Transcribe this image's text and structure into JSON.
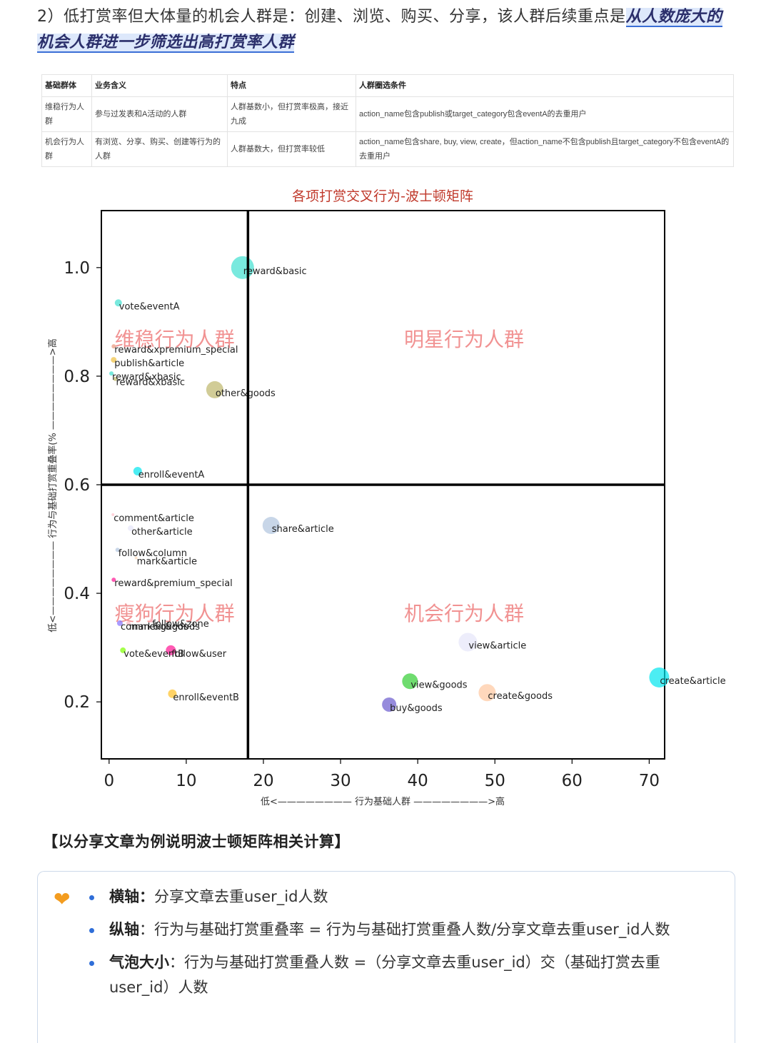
{
  "intro": {
    "text": "2）低打赏率但大体量的机会人群是：创建、浏览、购买、分享，该人群后续重点是",
    "highlight": "从人数庞大的机会人群进一步筛选出高打赏率人群"
  },
  "table": {
    "headers": [
      "基础群体",
      "业务含义",
      "特点",
      "人群圈选条件"
    ],
    "rows": [
      [
        "维稳行为人群",
        "参与过发表和A活动的人群",
        "人群基数小，但打赏率极高，接近九成",
        "action_name包含publish或target_category包含eventA的去重用户"
      ],
      [
        "机会行为人群",
        "有浏览、分享、购买、创建等行为的人群",
        "人群基数大，但打赏率较低",
        "action_name包含share, buy, view, create，但action_name不包含publish且target_category不包含eventA的去重用户"
      ]
    ]
  },
  "chart_data": {
    "type": "scatter",
    "title": "各项打赏交叉行为-波士顿矩阵",
    "xlabel": "低<———————— 行为基础人群 ————————>高",
    "ylabel": "低<———————— 行为与基础打赏重叠率(% ————————>高",
    "xlim": [
      -1,
      72
    ],
    "ylim": [
      0.095,
      1.105
    ],
    "xticks": [
      "0",
      "10",
      "20",
      "30",
      "40",
      "50",
      "60",
      "70"
    ],
    "yticks": [
      "0.2",
      "0.4",
      "0.6",
      "0.8",
      "1.0"
    ],
    "xtick_values": [
      0,
      10,
      20,
      30,
      40,
      50,
      60,
      70
    ],
    "ytick_values": [
      0.2,
      0.4,
      0.6,
      0.8,
      1.0
    ],
    "vline_x": 18,
    "hline_y": 0.6,
    "quadrants": [
      {
        "label": "维稳行为人群",
        "x": 8.5,
        "y": 0.855
      },
      {
        "label": "明星行为人群",
        "x": 46,
        "y": 0.855
      },
      {
        "label": "瘦狗行为人群",
        "x": 8.5,
        "y": 0.35
      },
      {
        "label": "机会行为人群",
        "x": 46,
        "y": 0.35
      }
    ],
    "points": [
      {
        "label": "reward&basic",
        "x": 17.3,
        "y": 1.0,
        "size": 16,
        "color": "#40e0d0"
      },
      {
        "label": "vote&eventA",
        "x": 1.2,
        "y": 0.935,
        "size": 5,
        "color": "#40e0d0"
      },
      {
        "label": "reward&xpremium_special",
        "x": 0.6,
        "y": 0.855,
        "size": 3,
        "color": "#e9967a"
      },
      {
        "label": "publish&article",
        "x": 0.6,
        "y": 0.83,
        "size": 4,
        "color": "#f0c040"
      },
      {
        "label": "reward&xbasic",
        "x": 0.3,
        "y": 0.805,
        "size": 3,
        "color": "#40e0d0"
      },
      {
        "label": "reward&xbasic",
        "x": 0.8,
        "y": 0.795,
        "size": 3,
        "color": "#bdb76b"
      },
      {
        "label": "other&goods",
        "x": 13.7,
        "y": 0.775,
        "size": 12,
        "color": "#bdb76b"
      },
      {
        "label": "enroll&eventA",
        "x": 3.7,
        "y": 0.625,
        "size": 6,
        "color": "#00e5ee"
      },
      {
        "label": "comment&article",
        "x": 0.5,
        "y": 0.545,
        "size": 2,
        "color": "#ffc0cb"
      },
      {
        "label": "other&article",
        "x": 2.8,
        "y": 0.52,
        "size": 4,
        "color": "#e6e6fa"
      },
      {
        "label": "share&article",
        "x": 21,
        "y": 0.525,
        "size": 12,
        "color": "#b0c4de"
      },
      {
        "label": "follow&column",
        "x": 1.1,
        "y": 0.48,
        "size": 3,
        "color": "#b0c4de"
      },
      {
        "label": "mark&article",
        "x": 3.5,
        "y": 0.465,
        "size": 2,
        "color": "#ffdab9"
      },
      {
        "label": "reward&premium_special",
        "x": 0.6,
        "y": 0.425,
        "size": 3,
        "color": "#ff1493"
      },
      {
        "label": "comment&goods",
        "x": 1.4,
        "y": 0.345,
        "size": 4,
        "color": "#8470ff"
      },
      {
        "label": "mark&goods",
        "x": 2.5,
        "y": 0.345,
        "size": 3,
        "color": "#ffb6c1"
      },
      {
        "label": "follow&zone",
        "x": 5.5,
        "y": 0.35,
        "size": 3,
        "color": "#ffc0cb"
      },
      {
        "label": "vote&eventB",
        "x": 1.8,
        "y": 0.295,
        "size": 4,
        "color": "#7fff00"
      },
      {
        "label": "follow&user",
        "x": 8,
        "y": 0.295,
        "size": 7,
        "color": "#ff1493"
      },
      {
        "label": "enroll&eventB",
        "x": 8.2,
        "y": 0.215,
        "size": 6,
        "color": "#ffc125"
      },
      {
        "label": "view&article",
        "x": 46.5,
        "y": 0.31,
        "size": 13,
        "color": "#e6e6fa"
      },
      {
        "label": "view&goods",
        "x": 39,
        "y": 0.238,
        "size": 11,
        "color": "#32cd32"
      },
      {
        "label": "create&goods",
        "x": 49,
        "y": 0.217,
        "size": 12,
        "color": "#ffc8a0"
      },
      {
        "label": "buy&goods",
        "x": 36.3,
        "y": 0.195,
        "size": 10,
        "color": "#6a5acd"
      },
      {
        "label": "create&article",
        "x": 71.3,
        "y": 0.245,
        "size": 14,
        "color": "#00e5ee"
      }
    ]
  },
  "example": {
    "title": "【以分享文章为例说明波士顿矩阵相关计算】",
    "items": [
      {
        "key": "横轴：",
        "text": "分享文章去重user_id人数"
      },
      {
        "key": "纵轴",
        "text": "：行为与基础打赏重叠率 = 行为与基础打赏重叠人数/分享文章去重user_id人数"
      },
      {
        "key": "气泡大小",
        "text": "：行为与基础打赏重叠人数 =（分享文章去重user_id）交（基础打赏去重user_id）人数"
      }
    ]
  }
}
